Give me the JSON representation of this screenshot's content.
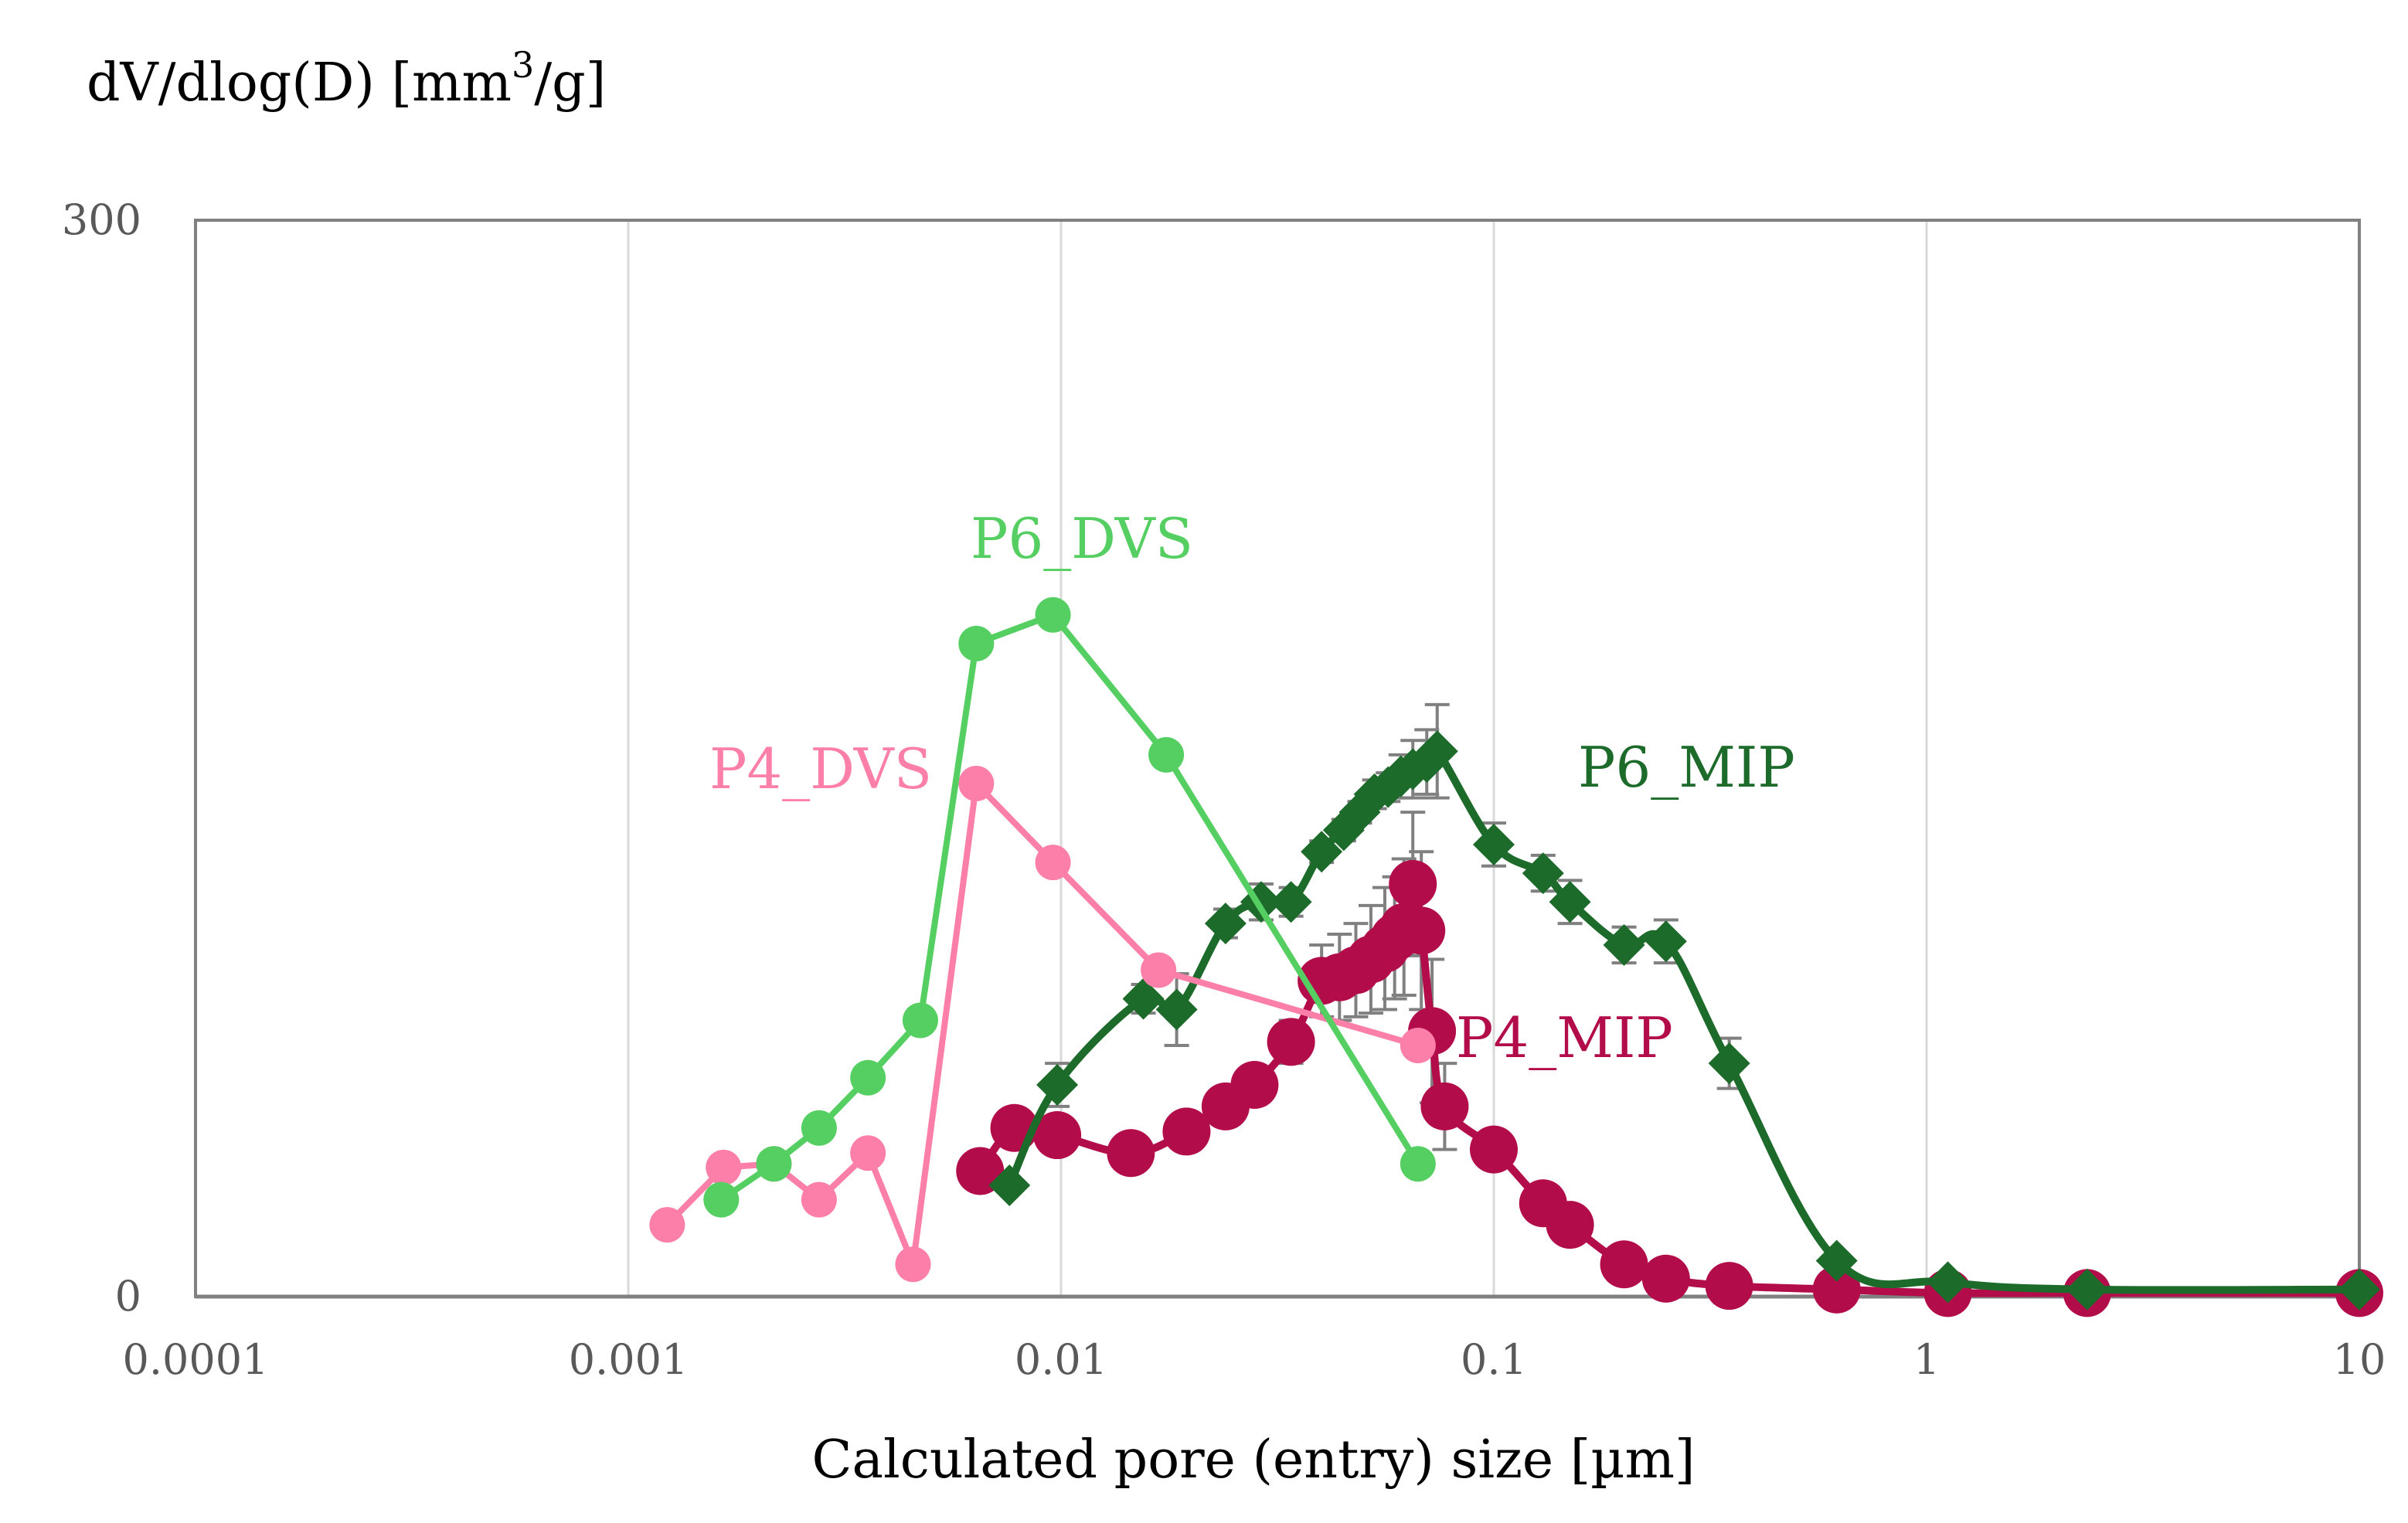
{
  "chart_data": {
    "type": "scatter",
    "title": "",
    "ylabel": "dV/dlog(D) [mm³/g]",
    "ylabel_base": "dV/dlog(D) [mm",
    "ylabel_sup": "3",
    "ylabel_tail": "/g]",
    "xlabel": "Calculated pore (entry) size [µm]",
    "xscale": "log",
    "xlim": [
      0.0001,
      10
    ],
    "ylim": [
      0,
      300
    ],
    "x_ticks": [
      {
        "value": 0.0001,
        "label": "0.0001"
      },
      {
        "value": 0.001,
        "label": "0.001"
      },
      {
        "value": 0.01,
        "label": "0.01"
      },
      {
        "value": 0.1,
        "label": "0.1"
      },
      {
        "value": 1,
        "label": "1"
      },
      {
        "value": 10,
        "label": "10"
      }
    ],
    "y_ticks": [
      {
        "value": 0,
        "label": "0"
      },
      {
        "value": 300,
        "label": "300"
      }
    ],
    "grid": "vertical",
    "series": [
      {
        "name": "P6_DVS",
        "label": "P6_DVS",
        "color": "#55cf61",
        "marker": "circle",
        "line": "straight",
        "x": [
          0.00164,
          0.00217,
          0.00276,
          0.00358,
          0.00473,
          0.00637,
          0.00958,
          0.0175,
          0.0668
        ],
        "y": [
          27,
          37,
          47,
          61,
          77,
          182,
          190,
          151,
          37
        ]
      },
      {
        "name": "P4_DVS",
        "label": "P4_DVS",
        "color": "#fb7fa8",
        "marker": "circle",
        "line": "straight",
        "x": [
          0.00123,
          0.00166,
          0.00217,
          0.00276,
          0.00358,
          0.00455,
          0.00637,
          0.00958,
          0.0168,
          0.0668
        ],
        "y": [
          20,
          36,
          37,
          27,
          40,
          9,
          143,
          121,
          91,
          70
        ]
      },
      {
        "name": "P6_MIP",
        "label": "P6_MIP",
        "color": "#1d6b2a",
        "marker": "diamond",
        "line": "smooth",
        "error_bars": true,
        "x": [
          0.0076,
          0.0098,
          0.0155,
          0.0185,
          0.024,
          0.029,
          0.034,
          0.04,
          0.045,
          0.049,
          0.053,
          0.057,
          0.061,
          0.065,
          0.07,
          0.074,
          0.1,
          0.13,
          0.15,
          0.2,
          0.25,
          0.35,
          0.62,
          1.12,
          2.35,
          10
        ],
        "y": [
          31,
          59,
          83,
          80,
          104,
          110,
          110,
          124,
          130,
          135,
          140,
          142,
          145,
          147,
          149,
          152,
          126,
          118,
          110,
          98,
          99,
          65,
          10,
          4,
          2,
          2
        ],
        "y_err": [
          0,
          6,
          4,
          10,
          4,
          5,
          4,
          3,
          3,
          3,
          4,
          4,
          6,
          8,
          9,
          13,
          6,
          5,
          6,
          5,
          6,
          7,
          2,
          1,
          1,
          0
        ]
      },
      {
        "name": "P4_MIP",
        "label": "P4_MIP",
        "color": "#b30c4a",
        "marker": "circle",
        "line": "smooth",
        "error_bars": true,
        "x": [
          0.0065,
          0.0078,
          0.0098,
          0.0145,
          0.0195,
          0.024,
          0.028,
          0.034,
          0.04,
          0.044,
          0.048,
          0.052,
          0.056,
          0.059,
          0.062,
          0.065,
          0.068,
          0.072,
          0.077,
          0.1,
          0.13,
          0.15,
          0.2,
          0.25,
          0.35,
          0.62,
          1.12,
          2.35,
          10
        ],
        "y": [
          35,
          47,
          45,
          40,
          46,
          53,
          59,
          71,
          88,
          89,
          91,
          94,
          97,
          100,
          103,
          115,
          102,
          74,
          53,
          41,
          26,
          20,
          9,
          5,
          3,
          2,
          1,
          1,
          1
        ],
        "y_err": [
          0,
          0,
          0,
          0,
          0,
          4,
          5,
          6,
          10,
          12,
          13,
          15,
          17,
          17,
          19,
          20,
          22,
          20,
          12,
          5,
          3,
          3,
          2,
          2,
          1,
          1,
          0,
          0,
          0
        ]
      }
    ],
    "annotations": [
      {
        "text": "P6_DVS",
        "series": "P6_DVS"
      },
      {
        "text": "P4_DVS",
        "series": "P4_DVS"
      },
      {
        "text": "P6_MIP",
        "series": "P6_MIP"
      },
      {
        "text": "P4_MIP",
        "series": "P4_MIP"
      }
    ]
  }
}
